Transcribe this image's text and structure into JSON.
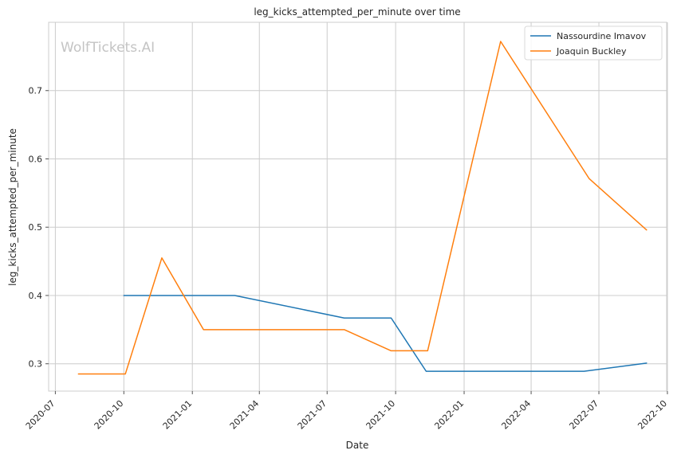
{
  "chart_data": {
    "type": "line",
    "title": "leg_kicks_attempted_per_minute over time",
    "xlabel": "Date",
    "ylabel": "leg_kicks_attempted_per_minute",
    "watermark": "WolfTickets.AI",
    "xlim": [
      "2020-06-22",
      "2022-09-30"
    ],
    "ylim": [
      0.26,
      0.8
    ],
    "x_ticks": [
      "2020-07",
      "2020-10",
      "2021-01",
      "2021-04",
      "2021-07",
      "2021-10",
      "2022-01",
      "2022-04",
      "2022-07",
      "2022-10"
    ],
    "y_ticks": [
      0.3,
      0.4,
      0.5,
      0.6,
      0.7
    ],
    "grid": true,
    "legend_position": "top-right",
    "series": [
      {
        "name": "Nassourdine Imavov",
        "color": "#1f77b4",
        "points": [
          {
            "x": "2020-10-01",
            "y": 0.4
          },
          {
            "x": "2021-02-27",
            "y": 0.4
          },
          {
            "x": "2021-07-24",
            "y": 0.367
          },
          {
            "x": "2021-09-25",
            "y": 0.367
          },
          {
            "x": "2021-11-11",
            "y": 0.289
          },
          {
            "x": "2022-06-11",
            "y": 0.289
          },
          {
            "x": "2022-09-03",
            "y": 0.301
          }
        ]
      },
      {
        "name": "Joaquin Buckley",
        "color": "#ff7f0e",
        "points": [
          {
            "x": "2020-08-01",
            "y": 0.285
          },
          {
            "x": "2020-10-03",
            "y": 0.285
          },
          {
            "x": "2020-11-21",
            "y": 0.455
          },
          {
            "x": "2021-01-16",
            "y": 0.35
          },
          {
            "x": "2021-07-24",
            "y": 0.35
          },
          {
            "x": "2021-09-25",
            "y": 0.319
          },
          {
            "x": "2021-11-13",
            "y": 0.319
          },
          {
            "x": "2022-02-19",
            "y": 0.772
          },
          {
            "x": "2022-06-18",
            "y": 0.571
          },
          {
            "x": "2022-09-03",
            "y": 0.496
          }
        ]
      }
    ]
  }
}
